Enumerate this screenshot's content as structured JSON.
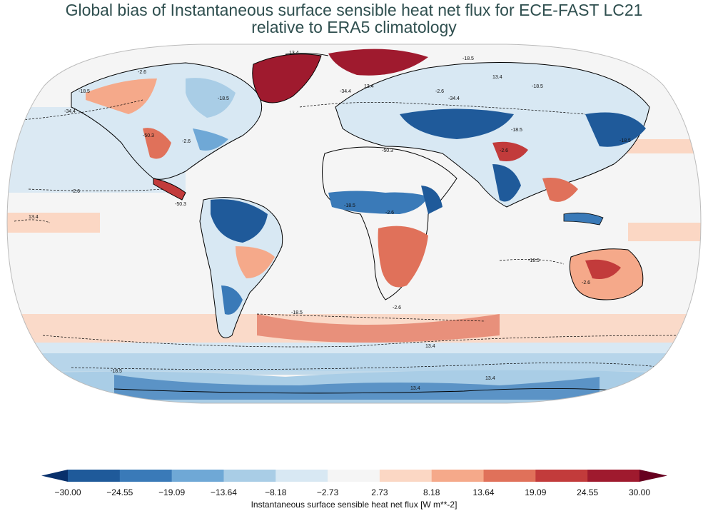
{
  "title": {
    "line1": "Global bias of Instantaneous surface sensible heat net flux for ECE-FAST LC21",
    "line2": "relative to ERA5 climatology"
  },
  "map": {
    "projection": "Robinson",
    "contour_labels": [
      "13.4",
      "-2.6",
      "-18.5",
      "-34.4",
      "-50.3",
      "-18.5",
      "-2.6",
      "13.4",
      "-18.5",
      "-34.4",
      "-50.3",
      "-2.6",
      "-18.5",
      "-34.4",
      "-18.5",
      "-2.6",
      "-18.5",
      "13.4",
      "13.4",
      "-2.6",
      "-50.3",
      "-18.5",
      "-2.6",
      "-18.5",
      "-2.6",
      "-2.6",
      "13.4",
      "13.4",
      "13.4",
      "-18.5",
      "-18.5"
    ],
    "land_colors": {
      "strong_negative": "#1f5a9a",
      "negative": "#6fa8d6",
      "weak_negative": "#d3e5f2",
      "neutral": "#f5f5f5",
      "weak_positive": "#fbd7c4",
      "positive": "#e38a6e",
      "strong_positive": "#a51c30"
    }
  },
  "colorbar": {
    "label": "Instantaneous surface sensible heat net flux [W m**-2]",
    "ticks": [
      "−30.00",
      "−24.55",
      "−19.09",
      "−13.64",
      "−8.18",
      "−2.73",
      "2.73",
      "8.18",
      "13.64",
      "19.09",
      "24.55",
      "30.00"
    ],
    "colors": [
      "#08306b",
      "#1f5a9a",
      "#3a7ab8",
      "#6fa8d6",
      "#a9cde6",
      "#d8e8f3",
      "#f5f5f5",
      "#fbd7c4",
      "#f5a98a",
      "#e0715a",
      "#c23b3b",
      "#9f1a2e",
      "#67001f"
    ],
    "extend": "both"
  }
}
